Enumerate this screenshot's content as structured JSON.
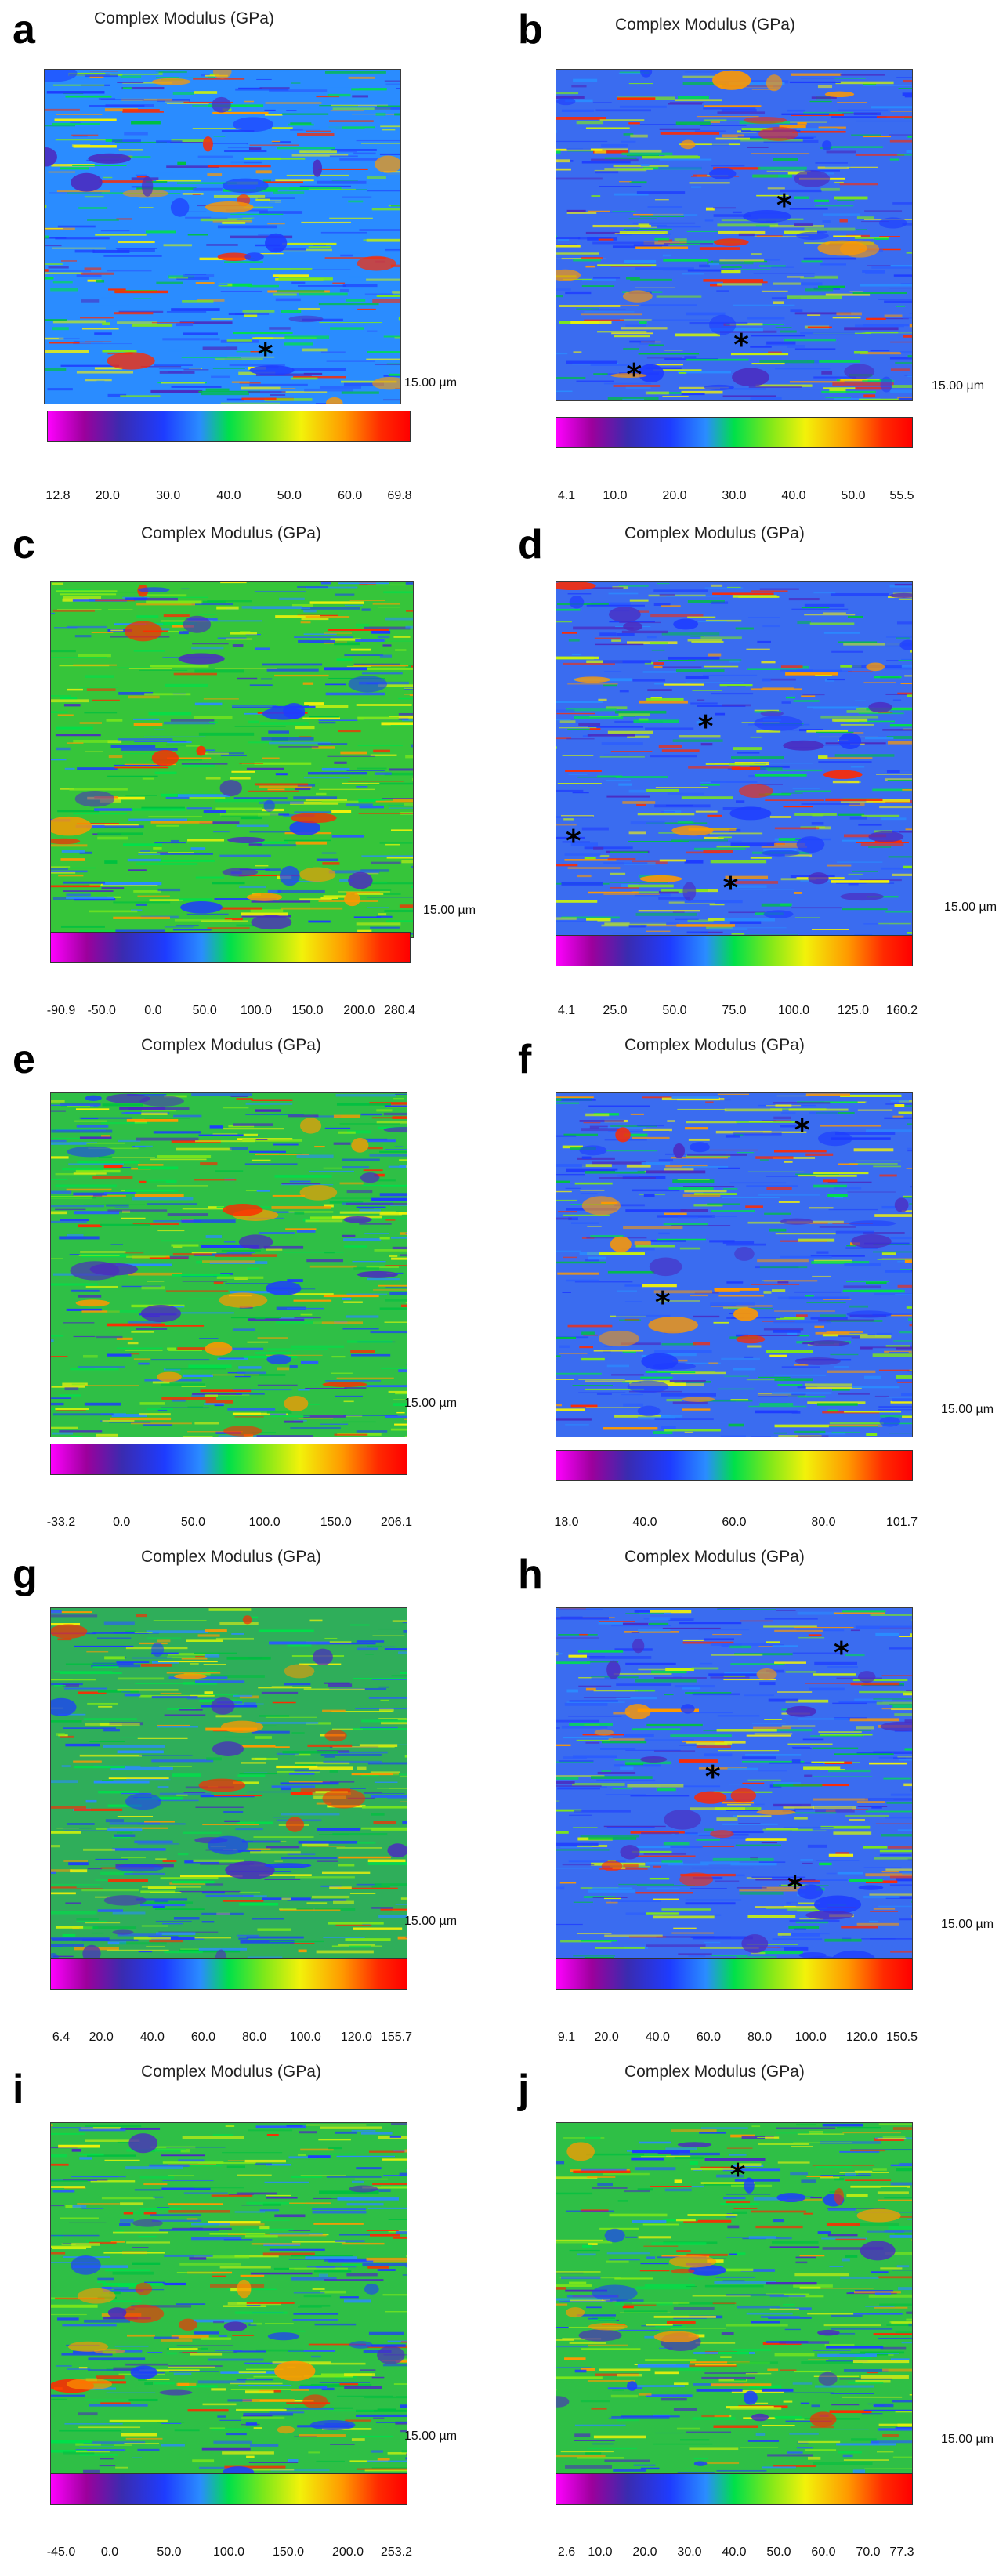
{
  "colors": {
    "low": "#ff00ff",
    "mid_low": "#1e3cff",
    "mid": "#00e04a",
    "mid_high": "#f2f20a",
    "high": "#ff0000",
    "background": "#ffffff"
  },
  "panels": [
    {
      "letter": "a",
      "title": "Complex Modulus (GPa)",
      "scale": "15.00 µm",
      "ticks": [
        "12.8",
        "20.0",
        "30.0",
        "40.0",
        "50.0",
        "60.0",
        "69.8"
      ],
      "asterisk_count": 1
    },
    {
      "letter": "b",
      "title": "Complex Modulus (GPa)",
      "scale": "15.00 µm",
      "ticks": [
        "4.1",
        "10.0",
        "20.0",
        "30.0",
        "40.0",
        "50.0",
        "55.5"
      ],
      "asterisk_count": 3
    },
    {
      "letter": "c",
      "title": "Complex Modulus (GPa)",
      "scale": "15.00 µm",
      "ticks": [
        "-90.9",
        "-50.0",
        "0.0",
        "50.0",
        "100.0",
        "150.0",
        "200.0",
        "280.4"
      ],
      "asterisk_count": 0
    },
    {
      "letter": "d",
      "title": "Complex Modulus (GPa)",
      "scale": "15.00 µm",
      "ticks": [
        "4.1",
        "25.0",
        "50.0",
        "75.0",
        "100.0",
        "125.0",
        "160.2"
      ],
      "asterisk_count": 3
    },
    {
      "letter": "e",
      "title": "Complex Modulus (GPa)",
      "scale": "15.00 µm",
      "ticks": [
        "-33.2",
        "0.0",
        "50.0",
        "100.0",
        "150.0",
        "206.1"
      ],
      "asterisk_count": 0
    },
    {
      "letter": "f",
      "title": "Complex Modulus (GPa)",
      "scale": "15.00 µm",
      "ticks": [
        "18.0",
        "40.0",
        "60.0",
        "80.0",
        "101.7"
      ],
      "asterisk_count": 2
    },
    {
      "letter": "g",
      "title": "Complex Modulus (GPa)",
      "scale": "15.00 µm",
      "ticks": [
        "6.4",
        "20.0",
        "40.0",
        "60.0",
        "80.0",
        "100.0",
        "120.0",
        "155.7"
      ],
      "asterisk_count": 0
    },
    {
      "letter": "h",
      "title": "Complex Modulus (GPa)",
      "scale": "15.00 µm",
      "ticks": [
        "9.1",
        "20.0",
        "40.0",
        "60.0",
        "80.0",
        "100.0",
        "120.0",
        "150.5"
      ],
      "asterisk_count": 3
    },
    {
      "letter": "i",
      "title": "Complex Modulus (GPa)",
      "scale": "15.00 µm",
      "ticks": [
        "-45.0",
        "0.0",
        "50.0",
        "100.0",
        "150.0",
        "200.0",
        "253.2"
      ],
      "asterisk_count": 0
    },
    {
      "letter": "j",
      "title": "Complex Modulus (GPa)",
      "scale": "15.00 µm",
      "ticks": [
        "2.6",
        "10.0",
        "20.0",
        "30.0",
        "40.0",
        "50.0",
        "60.0",
        "70.0",
        "77.3"
      ],
      "asterisk_count": 1
    }
  ],
  "asterisk_symbol": "*"
}
